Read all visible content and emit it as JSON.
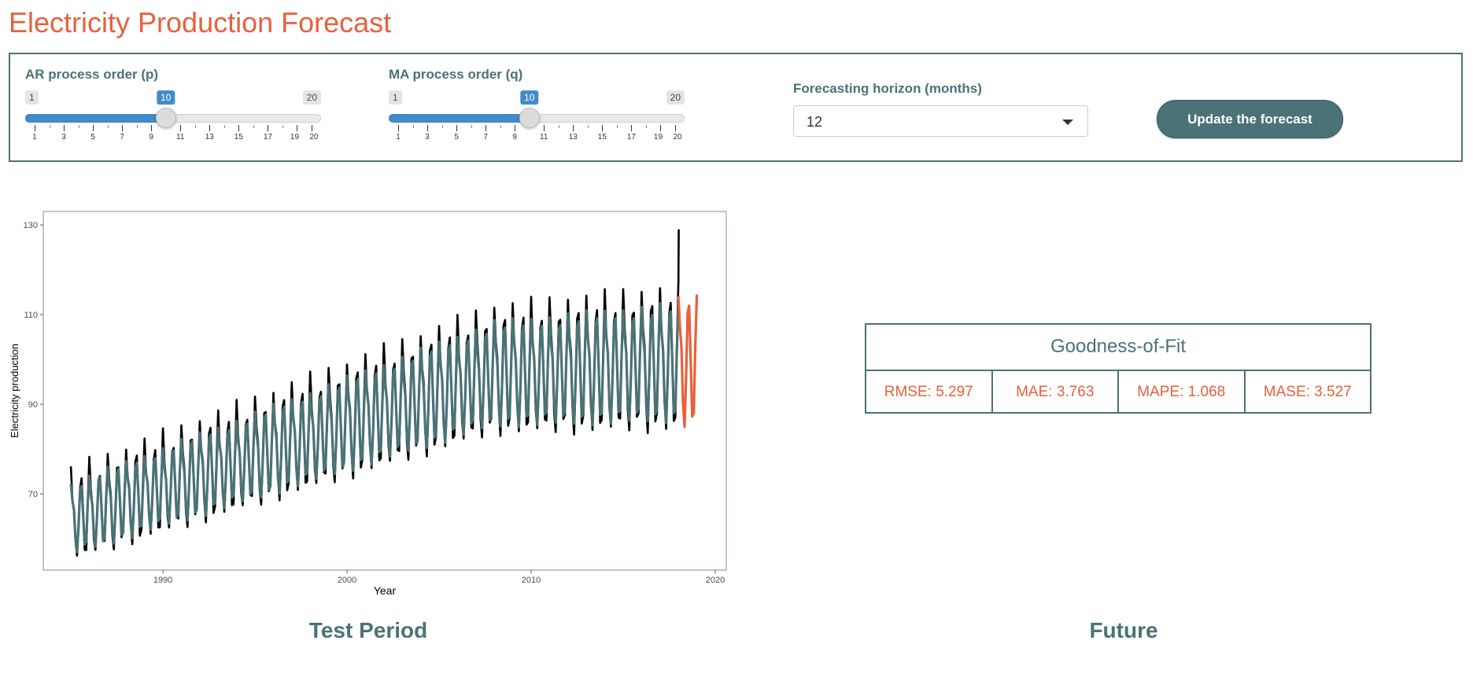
{
  "app_title": "Electricity Production Forecast",
  "controls": {
    "ar": {
      "label": "AR process order (p)",
      "min": 1,
      "max": 20,
      "value": 10,
      "ticks": [
        "1",
        "3",
        "5",
        "7",
        "9",
        "11",
        "13",
        "15",
        "17",
        "19",
        "20"
      ]
    },
    "ma": {
      "label": "MA process order (q)",
      "min": 1,
      "max": 20,
      "value": 10,
      "ticks": [
        "1",
        "3",
        "5",
        "7",
        "9",
        "11",
        "13",
        "15",
        "17",
        "19",
        "20"
      ]
    },
    "horizon": {
      "label": "Forecasting horizon (months)",
      "value": "12"
    },
    "update_label": "Update the forecast"
  },
  "chart_data": {
    "type": "line",
    "xlabel": "Year",
    "ylabel": "Electricity production",
    "xlim": [
      1983.5,
      2020.6
    ],
    "ylim": [
      53,
      133
    ],
    "xticks": [
      1990,
      2000,
      2010,
      2020
    ],
    "yticks": [
      70,
      90,
      110,
      130
    ],
    "series": [
      {
        "color": "#000000",
        "start": 1985.0,
        "end": 2018.0,
        "peak": 129
      },
      {
        "color": "#4a7277",
        "start": 1985.0,
        "end": 2018.0
      },
      {
        "color": "#e8603c",
        "start": 2018.0,
        "end": 2019.0
      }
    ]
  },
  "sections": {
    "left_title": "Test Period",
    "right_title": "Future"
  },
  "gof": {
    "title": "Goodness-of-Fit",
    "metrics": [
      "RMSE: 5.297",
      "MAE: 3.763",
      "MAPE: 1.068",
      "MASE: 3.527"
    ]
  },
  "colors": {
    "accent": "#e8603c",
    "primary": "#4a7277",
    "slider": "#428bca"
  }
}
